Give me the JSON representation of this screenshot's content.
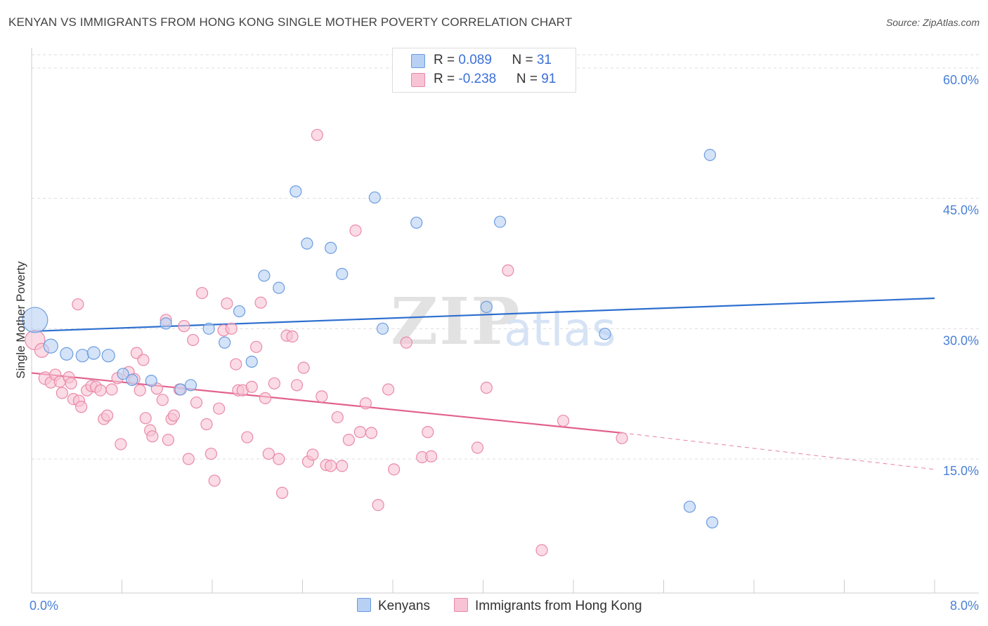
{
  "title": "KENYAN VS IMMIGRANTS FROM HONG KONG SINGLE MOTHER POVERTY CORRELATION CHART",
  "source": "Source: ZipAtlas.com",
  "watermark": {
    "zip": "ZIP",
    "atlas": "atlas"
  },
  "legend": {
    "series1": {
      "r_label": "R = ",
      "r_value": "0.089",
      "n_label": "N = ",
      "n_value": "31"
    },
    "series2": {
      "r_label": "R = ",
      "r_value": "-0.238",
      "n_label": "N = ",
      "n_value": "91"
    }
  },
  "bottom_legend": {
    "series1": "Kenyans",
    "series2": "Immigrants from Hong Kong"
  },
  "colors": {
    "blue_fill": "#b8d0f4",
    "blue_stroke": "#6b9de0",
    "blue_line": "#2d6fcf",
    "pink_fill": "#f8c3d4",
    "pink_stroke": "#e98aa8",
    "pink_line": "#e2628c",
    "tick_label": "#4a80d6",
    "grid": "#dddddd"
  },
  "chart_data": {
    "type": "scatter",
    "title": "KENYAN VS IMMIGRANTS FROM HONG KONG SINGLE MOTHER POVERTY CORRELATION CHART",
    "xlabel": "",
    "ylabel": "Single Mother Poverty",
    "xlim": [
      0,
      8
    ],
    "ylim": [
      0,
      63
    ],
    "x_tick_labels": [
      {
        "value": 0,
        "label": "0.0%"
      },
      {
        "value": 8,
        "label": "8.0%"
      }
    ],
    "y_tick_labels": [
      {
        "value": 15,
        "label": "15.0%"
      },
      {
        "value": 30,
        "label": "30.0%"
      },
      {
        "value": 45,
        "label": "45.0%"
      },
      {
        "value": 60,
        "label": "60.0%"
      }
    ],
    "grid": true,
    "series": [
      {
        "name": "Kenyans",
        "color": "#b8d0f4",
        "points": [
          [
            0.03,
            31.0,
            18
          ],
          [
            0.17,
            28.0,
            10
          ],
          [
            0.31,
            27.1,
            9
          ],
          [
            0.45,
            26.9,
            9
          ],
          [
            0.55,
            27.2,
            9
          ],
          [
            0.68,
            26.9,
            9
          ],
          [
            0.81,
            24.8,
            8
          ],
          [
            0.89,
            24.1,
            8
          ],
          [
            1.06,
            24.0,
            8
          ],
          [
            1.19,
            30.6,
            8
          ],
          [
            1.32,
            23.0,
            8
          ],
          [
            1.41,
            23.5,
            8
          ],
          [
            1.57,
            30.0,
            8
          ],
          [
            1.71,
            28.4,
            8
          ],
          [
            1.84,
            32.0,
            8
          ],
          [
            1.95,
            26.2,
            8
          ],
          [
            2.06,
            36.1,
            8
          ],
          [
            2.19,
            34.7,
            8
          ],
          [
            2.34,
            45.8,
            8
          ],
          [
            2.44,
            39.8,
            8
          ],
          [
            2.65,
            39.3,
            8
          ],
          [
            2.75,
            36.3,
            8
          ],
          [
            3.04,
            45.1,
            8
          ],
          [
            3.11,
            30.0,
            8
          ],
          [
            3.41,
            42.2,
            8
          ],
          [
            4.03,
            32.5,
            8
          ],
          [
            4.15,
            42.3,
            8
          ],
          [
            5.08,
            29.4,
            8
          ],
          [
            6.01,
            50.0,
            8
          ],
          [
            5.83,
            9.5,
            8
          ],
          [
            6.03,
            7.7,
            8
          ]
        ]
      },
      {
        "name": "Immigrants from Hong Kong",
        "color": "#f8c3d4",
        "points": [
          [
            0.03,
            28.7,
            14
          ],
          [
            0.09,
            27.5,
            10
          ],
          [
            0.12,
            24.3,
            9
          ],
          [
            0.17,
            23.8,
            8
          ],
          [
            0.21,
            24.7,
            8
          ],
          [
            0.25,
            23.9,
            8
          ],
          [
            0.27,
            22.6,
            8
          ],
          [
            0.33,
            24.4,
            8
          ],
          [
            0.35,
            23.7,
            8
          ],
          [
            0.37,
            21.9,
            8
          ],
          [
            0.42,
            21.7,
            8
          ],
          [
            0.44,
            21.0,
            8
          ],
          [
            0.49,
            22.9,
            8
          ],
          [
            0.53,
            23.4,
            8
          ],
          [
            0.41,
            32.8,
            8
          ],
          [
            0.57,
            23.3,
            8
          ],
          [
            0.61,
            22.9,
            8
          ],
          [
            0.64,
            19.6,
            8
          ],
          [
            0.67,
            20.0,
            8
          ],
          [
            0.71,
            23.0,
            8
          ],
          [
            0.76,
            24.3,
            8
          ],
          [
            0.79,
            16.7,
            8
          ],
          [
            0.86,
            25.0,
            8
          ],
          [
            0.91,
            24.2,
            8
          ],
          [
            0.93,
            27.2,
            8
          ],
          [
            0.96,
            22.9,
            8
          ],
          [
            0.99,
            26.4,
            8
          ],
          [
            1.01,
            19.7,
            8
          ],
          [
            1.05,
            18.3,
            8
          ],
          [
            1.07,
            17.6,
            8
          ],
          [
            1.11,
            23.1,
            8
          ],
          [
            1.16,
            21.8,
            8
          ],
          [
            1.19,
            31.0,
            8
          ],
          [
            1.21,
            17.2,
            8
          ],
          [
            1.24,
            19.6,
            8
          ],
          [
            1.26,
            20.0,
            8
          ],
          [
            1.31,
            23.0,
            8
          ],
          [
            1.35,
            30.3,
            8
          ],
          [
            1.39,
            15.0,
            8
          ],
          [
            1.43,
            28.7,
            8
          ],
          [
            1.46,
            21.5,
            8
          ],
          [
            1.51,
            34.1,
            8
          ],
          [
            1.55,
            19.0,
            8
          ],
          [
            1.59,
            15.6,
            8
          ],
          [
            1.62,
            12.5,
            8
          ],
          [
            1.66,
            20.8,
            8
          ],
          [
            1.7,
            29.8,
            8
          ],
          [
            1.73,
            32.9,
            8
          ],
          [
            1.77,
            30.0,
            8
          ],
          [
            1.81,
            25.9,
            8
          ],
          [
            1.83,
            22.9,
            8
          ],
          [
            1.87,
            22.9,
            8
          ],
          [
            1.91,
            17.5,
            8
          ],
          [
            1.95,
            23.3,
            8
          ],
          [
            1.99,
            27.9,
            8
          ],
          [
            2.03,
            33.0,
            8
          ],
          [
            2.07,
            22.0,
            8
          ],
          [
            2.1,
            15.6,
            8
          ],
          [
            2.15,
            23.7,
            8
          ],
          [
            2.19,
            15.0,
            8
          ],
          [
            2.22,
            11.1,
            8
          ],
          [
            2.26,
            29.2,
            8
          ],
          [
            2.31,
            29.1,
            8
          ],
          [
            2.35,
            23.5,
            8
          ],
          [
            2.41,
            25.5,
            8
          ],
          [
            2.45,
            14.7,
            8
          ],
          [
            2.49,
            15.5,
            8
          ],
          [
            2.53,
            52.3,
            8
          ],
          [
            2.57,
            22.2,
            8
          ],
          [
            2.61,
            14.3,
            8
          ],
          [
            2.65,
            14.2,
            8
          ],
          [
            2.71,
            19.8,
            8
          ],
          [
            2.75,
            14.2,
            8
          ],
          [
            2.81,
            17.2,
            8
          ],
          [
            2.87,
            41.3,
            8
          ],
          [
            2.91,
            18.1,
            8
          ],
          [
            2.96,
            21.4,
            8
          ],
          [
            3.01,
            18.0,
            8
          ],
          [
            3.07,
            9.7,
            8
          ],
          [
            3.16,
            23.0,
            8
          ],
          [
            3.21,
            13.8,
            8
          ],
          [
            3.32,
            28.4,
            8
          ],
          [
            3.46,
            15.2,
            8
          ],
          [
            3.51,
            18.1,
            8
          ],
          [
            3.54,
            15.3,
            8
          ],
          [
            3.95,
            16.3,
            8
          ],
          [
            4.03,
            23.2,
            8
          ],
          [
            4.22,
            36.7,
            8
          ],
          [
            4.52,
            4.5,
            8
          ],
          [
            4.71,
            19.4,
            8
          ],
          [
            5.23,
            17.4,
            8
          ]
        ]
      }
    ],
    "trendlines": [
      {
        "series": "Kenyans",
        "x": [
          0,
          8
        ],
        "y": [
          29.7,
          33.5
        ]
      },
      {
        "series": "Immigrants from Hong Kong",
        "x": [
          0,
          5.23
        ],
        "y": [
          24.9,
          18.0
        ],
        "dashed_extension_to": [
          8,
          13.8
        ]
      }
    ]
  }
}
